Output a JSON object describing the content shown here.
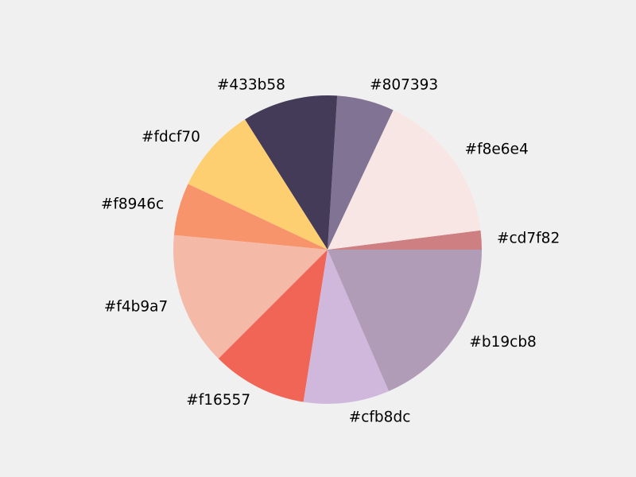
{
  "chart_data": {
    "type": "pie",
    "title": "",
    "start_angle_deg": 0,
    "direction": "counterclockwise",
    "legend": "none",
    "slices": [
      {
        "label": "#cd7f82",
        "color": "#cd7f82",
        "value": 2.0
      },
      {
        "label": "#f8e6e4",
        "color": "#f8e6e4",
        "value": 16.0
      },
      {
        "label": "#807393",
        "color": "#807393",
        "value": 6.0
      },
      {
        "label": "#433b58",
        "color": "#433b58",
        "value": 10.0
      },
      {
        "label": "#fdcf70",
        "color": "#fdcf70",
        "value": 9.0
      },
      {
        "label": "#f8946c",
        "color": "#f8946c",
        "value": 5.5
      },
      {
        "label": "#f4b9a7",
        "color": "#f4b9a7",
        "value": 14.0
      },
      {
        "label": "#f16557",
        "color": "#f16557",
        "value": 10.0
      },
      {
        "label": "#cfb8dc",
        "color": "#cfb8dc",
        "value": 9.0
      },
      {
        "label": "#b19cb8",
        "color": "#b19cb8",
        "value": 18.5
      }
    ]
  }
}
